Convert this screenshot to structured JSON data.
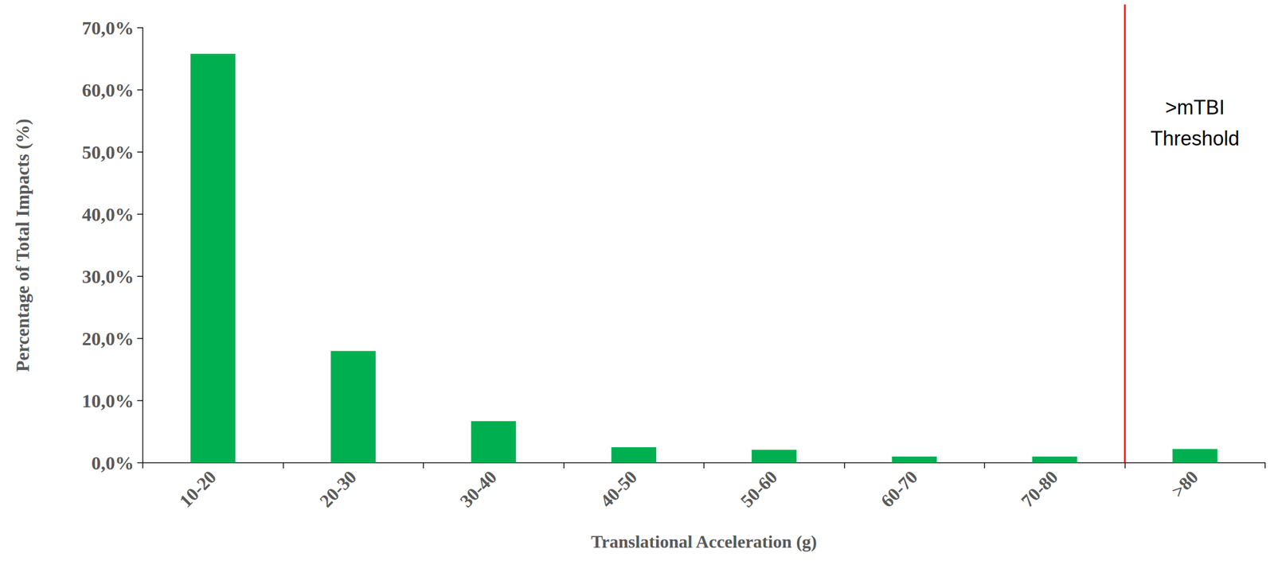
{
  "chart_data": {
    "type": "bar",
    "xlabel": "Translational Acceleration (g)",
    "ylabel": "Percentage of Total Impacts (%)",
    "categories": [
      "10-20",
      "20-30",
      "30-40",
      "40-50",
      "50-60",
      "60-70",
      "70-80",
      ">80"
    ],
    "values": [
      65.8,
      18.0,
      6.7,
      2.5,
      2.1,
      1.0,
      1.0,
      2.2
    ],
    "color": "#00b050",
    "ylim": [
      0,
      70
    ],
    "yticks": [
      {
        "value": 0,
        "label": "0,0%"
      },
      {
        "value": 10,
        "label": "10,0%"
      },
      {
        "value": 20,
        "label": "20,0%"
      },
      {
        "value": 30,
        "label": "30,0%"
      },
      {
        "value": 40,
        "label": "40,0%"
      },
      {
        "value": 50,
        "label": "50,0%"
      },
      {
        "value": 60,
        "label": "60,0%"
      },
      {
        "value": 70,
        "label": "70,0%"
      }
    ],
    "grid": false,
    "annotations": [
      {
        "text": ">mTBI Threshold",
        "between": [
          "70-80",
          ">80"
        ],
        "color": "#ff0000"
      }
    ]
  }
}
